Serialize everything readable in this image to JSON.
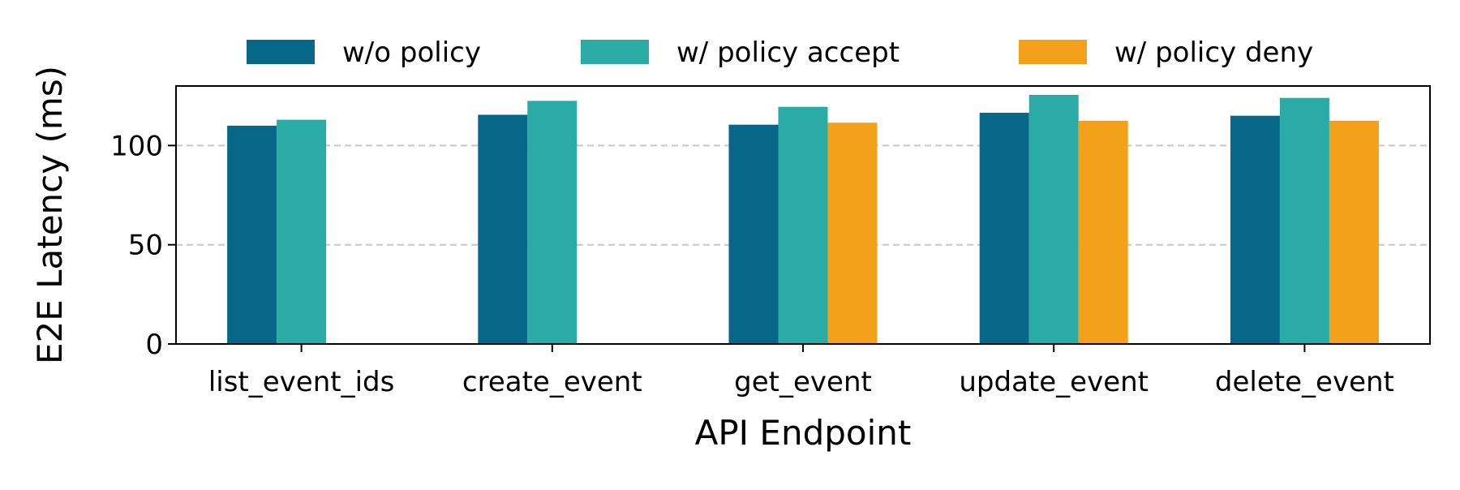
{
  "chart_data": {
    "type": "bar",
    "title": "",
    "xlabel": "API Endpoint",
    "ylabel": "E2E Latency (ms)",
    "ylim": [
      0,
      130
    ],
    "yticks": [
      0,
      50,
      100
    ],
    "grid": "y-dashed",
    "legend_position": "top",
    "categories": [
      "list_event_ids",
      "create_event",
      "get_event",
      "update_event",
      "delete_event"
    ],
    "series": [
      {
        "name": "w/o policy",
        "color": "#066788",
        "values": [
          110,
          115.5,
          110.5,
          116.5,
          115
        ]
      },
      {
        "name": "w/ policy accept",
        "color": "#2aaba5",
        "values": [
          113,
          122.5,
          119.5,
          125.5,
          124
        ]
      },
      {
        "name": "w/ policy deny",
        "color": "#f3a11a",
        "values": [
          null,
          null,
          111.5,
          112.5,
          112.5
        ]
      }
    ]
  }
}
